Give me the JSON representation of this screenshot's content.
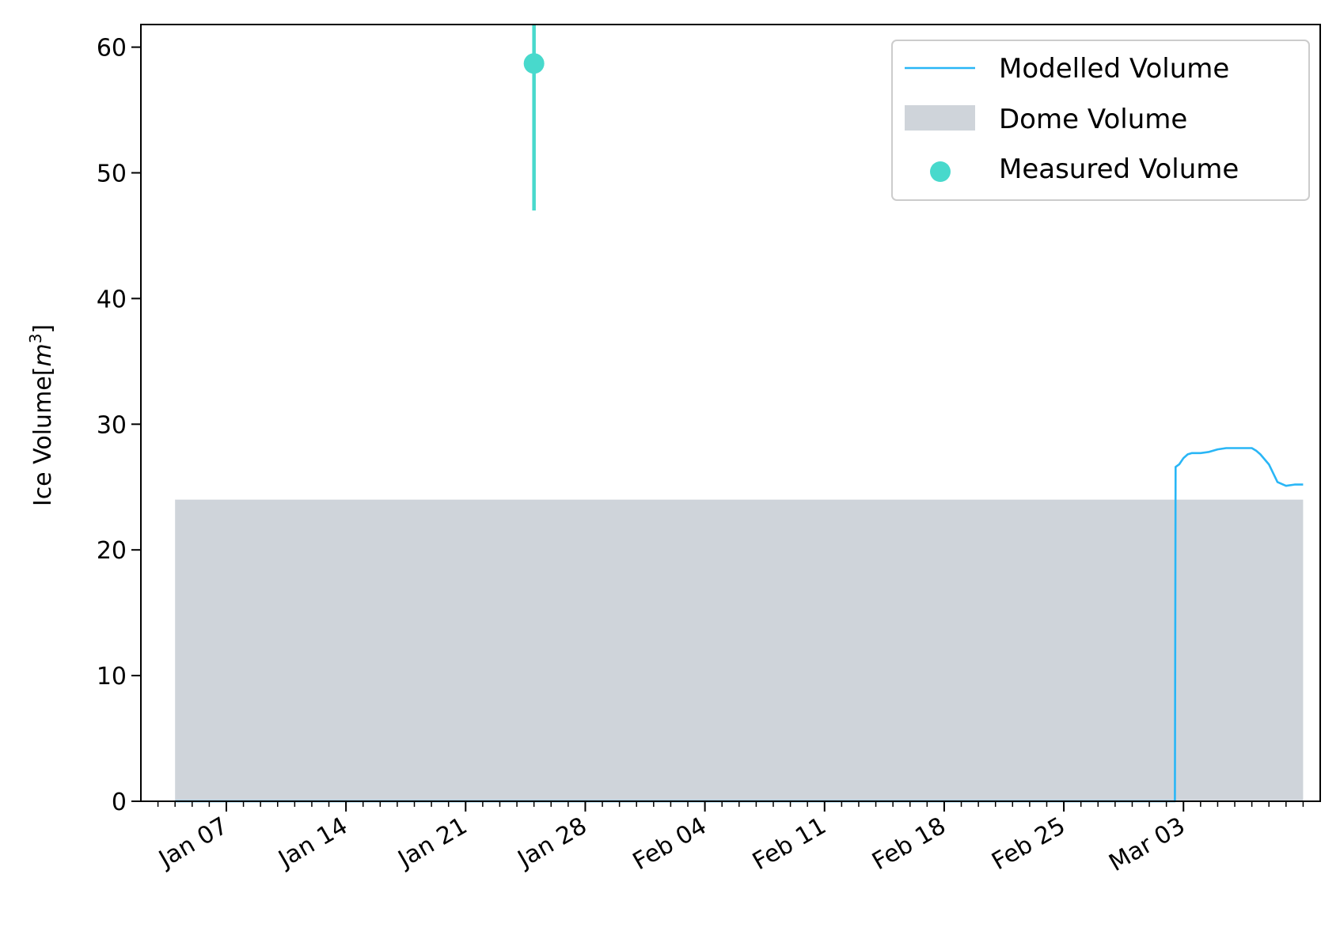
{
  "chart_data": {
    "type": "line",
    "title": "",
    "xlabel": "",
    "ylabel": "Ice Volume",
    "ylabel_unit": "m",
    "ylabel_unit_exp": "3",
    "x_axis_type": "date",
    "xlim": [
      "2024-01-02",
      "2024-03-11"
    ],
    "ylim": [
      0,
      61.8
    ],
    "x_tick_labels": [
      "Jan 07",
      "Jan 14",
      "Jan 21",
      "Jan 28",
      "Feb 04",
      "Feb 11",
      "Feb 18",
      "Feb 25",
      "Mar 03"
    ],
    "x_ticks": [
      "2024-01-07",
      "2024-01-14",
      "2024-01-21",
      "2024-01-28",
      "2024-02-04",
      "2024-02-11",
      "2024-02-18",
      "2024-02-25",
      "2024-03-03"
    ],
    "y_ticks": [
      0,
      10,
      20,
      30,
      40,
      50,
      60
    ],
    "grid": false,
    "legend_position": "top-right",
    "legend": [
      "Modelled Volume",
      "Dome Volume",
      "Measured Volume"
    ],
    "series": [
      {
        "name": "Modelled Volume",
        "type": "line",
        "color": "#29b6f6",
        "x": [
          "2024-01-04T00:00",
          "2024-03-02T12:00",
          "2024-03-02T13:00",
          "2024-03-02T18:00",
          "2024-03-03T00:00",
          "2024-03-03T06:00",
          "2024-03-03T12:00",
          "2024-03-04T00:00",
          "2024-03-04T12:00",
          "2024-03-05T00:00",
          "2024-03-05T12:00",
          "2024-03-06T00:00",
          "2024-03-06T12:00",
          "2024-03-07T00:00",
          "2024-03-07T06:00",
          "2024-03-07T12:00",
          "2024-03-08T00:00",
          "2024-03-08T12:00",
          "2024-03-09T00:00",
          "2024-03-09T12:00",
          "2024-03-10T00:00"
        ],
        "y": [
          0,
          0,
          26.6,
          26.8,
          27.3,
          27.6,
          27.7,
          27.7,
          27.8,
          28.0,
          28.1,
          28.1,
          28.1,
          28.1,
          27.9,
          27.6,
          26.8,
          25.4,
          25.1,
          25.2,
          25.2
        ]
      },
      {
        "name": "Dome Volume",
        "type": "area",
        "color": "#cfd4da",
        "x": [
          "2024-01-04",
          "2024-03-10"
        ],
        "y": [
          24,
          24
        ]
      },
      {
        "name": "Measured Volume",
        "type": "scatter",
        "color": "#48d9cc",
        "x": [
          "2024-01-25"
        ],
        "y": [
          58.7
        ],
        "error_bar": [
          [
            47.0,
            62.0
          ]
        ]
      }
    ]
  }
}
